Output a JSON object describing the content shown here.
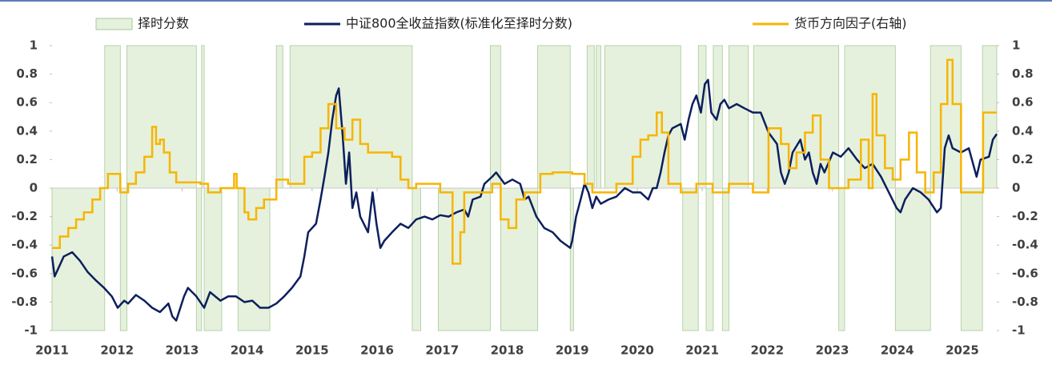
{
  "chart_data": {
    "type": "combo",
    "xlim": [
      2011,
      2025.53
    ],
    "xticks": [
      2011,
      2012,
      2013,
      2014,
      2015,
      2016,
      2017,
      2018,
      2019,
      2020,
      2021,
      2022,
      2023,
      2024,
      2025
    ],
    "ylim": [
      -1,
      1
    ],
    "yticks": [
      1,
      0.8,
      0.6,
      0.4,
      0.2,
      0,
      -0.2,
      -0.4,
      -0.6,
      -0.8,
      -1
    ],
    "y2lim": [
      -1,
      1
    ],
    "y2ticks": [
      1,
      0.8,
      0.6,
      0.4,
      0.2,
      0,
      -0.2,
      -0.4,
      -0.6,
      -0.8,
      -1
    ],
    "legend": "top",
    "series": [
      {
        "name": "择时分数",
        "type": "area",
        "color": "#e5f1dc",
        "bins": [
          2011.0,
          2011.81,
          2012.05,
          2012.15,
          2013.22,
          2013.3,
          2013.34,
          2013.61,
          2013.86,
          2014.35,
          2014.45,
          2014.55,
          2014.66,
          2016.54,
          2016.67,
          2016.94,
          2017.74,
          2017.9,
          2018.47,
          2018.97,
          2019.02,
          2019.23,
          2019.34,
          2019.37,
          2019.44,
          2019.5,
          2020.67,
          2020.7,
          2020.94,
          2021.06,
          2021.17,
          2021.31,
          2021.41,
          2021.71,
          2021.79,
          2023.1,
          2023.19,
          2023.97,
          2024.51,
          2024.98,
          2025.31,
          2025.53
        ],
        "values": [
          -1,
          1,
          -1,
          1,
          -1,
          1,
          -1,
          0,
          -1,
          0,
          1,
          0,
          1,
          -1,
          0,
          -1,
          1,
          -1,
          1,
          -1,
          0,
          1,
          0,
          1,
          0,
          1,
          0,
          -1,
          1,
          -1,
          1,
          -1,
          1,
          0,
          1,
          -1,
          1,
          -1,
          1,
          -1,
          1
        ]
      },
      {
        "name": "中证800全收益指数(标准化至择时分数)",
        "type": "line",
        "color": "#0d1f5c",
        "x": [
          2011.0,
          2011.04,
          2011.18,
          2011.31,
          2011.43,
          2011.55,
          2011.68,
          2011.8,
          2011.92,
          2012.01,
          2012.11,
          2012.17,
          2012.29,
          2012.42,
          2012.54,
          2012.66,
          2012.79,
          2012.85,
          2012.91,
          2013.03,
          2013.09,
          2013.22,
          2013.34,
          2013.43,
          2013.59,
          2013.71,
          2013.83,
          2013.96,
          2014.08,
          2014.2,
          2014.33,
          2014.45,
          2014.57,
          2014.69,
          2014.82,
          2014.88,
          2014.94,
          2015.06,
          2015.13,
          2015.19,
          2015.25,
          2015.31,
          2015.37,
          2015.41,
          2015.47,
          2015.52,
          2015.57,
          2015.62,
          2015.68,
          2015.74,
          2015.86,
          2015.93,
          2015.99,
          2016.05,
          2016.11,
          2016.23,
          2016.36,
          2016.48,
          2016.6,
          2016.73,
          2016.85,
          2016.97,
          2017.1,
          2017.22,
          2017.34,
          2017.4,
          2017.47,
          2017.59,
          2017.65,
          2017.77,
          2017.83,
          2017.96,
          2018.08,
          2018.2,
          2018.27,
          2018.33,
          2018.45,
          2018.57,
          2018.7,
          2018.82,
          2018.97,
          2019.0,
          2019.06,
          2019.13,
          2019.19,
          2019.25,
          2019.31,
          2019.37,
          2019.44,
          2019.56,
          2019.68,
          2019.81,
          2019.93,
          2020.05,
          2020.17,
          2020.24,
          2020.3,
          2020.36,
          2020.42,
          2020.48,
          2020.54,
          2020.67,
          2020.73,
          2020.79,
          2020.85,
          2020.91,
          2020.98,
          2021.04,
          2021.09,
          2021.14,
          2021.22,
          2021.28,
          2021.34,
          2021.41,
          2021.53,
          2021.65,
          2021.78,
          2021.9,
          2022.02,
          2022.15,
          2022.21,
          2022.27,
          2022.33,
          2022.39,
          2022.51,
          2022.58,
          2022.64,
          2022.7,
          2022.76,
          2022.82,
          2022.88,
          2023.01,
          2023.13,
          2023.25,
          2023.38,
          2023.5,
          2023.62,
          2023.75,
          2023.87,
          2023.99,
          2024.05,
          2024.12,
          2024.24,
          2024.36,
          2024.48,
          2024.61,
          2024.67,
          2024.73,
          2024.79,
          2024.85,
          2024.98,
          2025.1,
          2025.22,
          2025.28,
          2025.41,
          2025.47,
          2025.53
        ],
        "values": [
          -0.48,
          -0.62,
          -0.48,
          -0.45,
          -0.51,
          -0.59,
          -0.65,
          -0.7,
          -0.76,
          -0.84,
          -0.79,
          -0.81,
          -0.75,
          -0.79,
          -0.84,
          -0.87,
          -0.81,
          -0.9,
          -0.93,
          -0.76,
          -0.7,
          -0.76,
          -0.84,
          -0.73,
          -0.79,
          -0.76,
          -0.76,
          -0.8,
          -0.79,
          -0.84,
          -0.84,
          -0.81,
          -0.76,
          -0.7,
          -0.62,
          -0.48,
          -0.31,
          -0.25,
          -0.08,
          0.08,
          0.25,
          0.48,
          0.65,
          0.7,
          0.37,
          0.03,
          0.25,
          -0.14,
          -0.03,
          -0.2,
          -0.31,
          -0.03,
          -0.25,
          -0.42,
          -0.37,
          -0.31,
          -0.25,
          -0.28,
          -0.22,
          -0.2,
          -0.22,
          -0.19,
          -0.2,
          -0.17,
          -0.15,
          -0.2,
          -0.08,
          -0.06,
          0.03,
          0.08,
          0.11,
          0.03,
          0.06,
          0.03,
          -0.08,
          -0.06,
          -0.2,
          -0.28,
          -0.31,
          -0.37,
          -0.42,
          -0.37,
          -0.2,
          -0.08,
          0.03,
          -0.03,
          -0.14,
          -0.06,
          -0.11,
          -0.08,
          -0.06,
          0.0,
          -0.03,
          -0.03,
          -0.08,
          0.0,
          0.0,
          0.11,
          0.25,
          0.37,
          0.42,
          0.45,
          0.34,
          0.48,
          0.59,
          0.65,
          0.53,
          0.73,
          0.76,
          0.53,
          0.48,
          0.59,
          0.62,
          0.56,
          0.59,
          0.56,
          0.53,
          0.53,
          0.39,
          0.31,
          0.11,
          0.03,
          0.11,
          0.25,
          0.34,
          0.2,
          0.25,
          0.11,
          0.03,
          0.17,
          0.11,
          0.25,
          0.22,
          0.28,
          0.2,
          0.14,
          0.17,
          0.08,
          -0.03,
          -0.14,
          -0.17,
          -0.08,
          0.0,
          -0.03,
          -0.08,
          -0.17,
          -0.14,
          0.28,
          0.37,
          0.28,
          0.25,
          0.28,
          0.08,
          0.2,
          0.22,
          0.34,
          0.38
        ]
      },
      {
        "name": "货币方向因子(右轴)",
        "type": "step",
        "axis": "y2",
        "color": "#f7b500",
        "x": [
          2011.0,
          2011.12,
          2011.25,
          2011.37,
          2011.49,
          2011.62,
          2011.74,
          2011.86,
          2012.05,
          2012.17,
          2012.29,
          2012.42,
          2012.54,
          2012.6,
          2012.66,
          2012.72,
          2012.81,
          2012.91,
          2013.28,
          2013.4,
          2013.59,
          2013.8,
          2013.84,
          2013.96,
          2014.02,
          2014.14,
          2014.26,
          2014.45,
          2014.63,
          2014.88,
          2015.0,
          2015.13,
          2015.25,
          2015.37,
          2015.5,
          2015.62,
          2015.74,
          2015.86,
          2016.11,
          2016.23,
          2016.36,
          2016.48,
          2016.6,
          2016.97,
          2017.16,
          2017.28,
          2017.34,
          2017.59,
          2017.77,
          2017.9,
          2018.02,
          2018.14,
          2018.27,
          2018.51,
          2018.7,
          2019.0,
          2019.19,
          2019.31,
          2019.68,
          2019.93,
          2020.05,
          2020.17,
          2020.3,
          2020.38,
          2020.48,
          2020.67,
          2020.91,
          2021.16,
          2021.41,
          2021.78,
          2022.02,
          2022.21,
          2022.33,
          2022.45,
          2022.58,
          2022.7,
          2022.82,
          2022.95,
          2023.25,
          2023.44,
          2023.56,
          2023.62,
          2023.68,
          2023.81,
          2023.93,
          2024.05,
          2024.18,
          2024.3,
          2024.43,
          2024.56,
          2024.67,
          2024.77,
          2024.85,
          2024.98,
          2025.32,
          2025.53
        ],
        "values": [
          -0.42,
          -0.34,
          -0.28,
          -0.22,
          -0.17,
          -0.08,
          0.0,
          0.1,
          -0.03,
          0.03,
          0.11,
          0.22,
          0.43,
          0.31,
          0.34,
          0.25,
          0.11,
          0.04,
          0.03,
          -0.03,
          0.0,
          0.1,
          0.0,
          -0.17,
          -0.22,
          -0.14,
          -0.08,
          0.06,
          0.03,
          0.22,
          0.25,
          0.42,
          0.59,
          0.42,
          0.34,
          0.48,
          0.31,
          0.25,
          0.25,
          0.22,
          0.06,
          0.0,
          0.03,
          -0.03,
          -0.53,
          -0.31,
          -0.03,
          -0.03,
          0.03,
          -0.22,
          -0.28,
          -0.08,
          -0.03,
          0.1,
          0.11,
          0.1,
          0.03,
          -0.03,
          0.03,
          0.22,
          0.34,
          0.37,
          0.53,
          0.39,
          0.03,
          -0.03,
          0.03,
          -0.03,
          0.03,
          -0.03,
          0.42,
          0.31,
          0.14,
          0.25,
          0.39,
          0.51,
          0.2,
          0.0,
          0.06,
          0.34,
          0.0,
          0.66,
          0.37,
          0.14,
          0.06,
          0.2,
          0.39,
          0.11,
          -0.03,
          0.11,
          0.59,
          0.9,
          0.59,
          -0.03,
          0.53,
          0.53
        ]
      }
    ]
  }
}
